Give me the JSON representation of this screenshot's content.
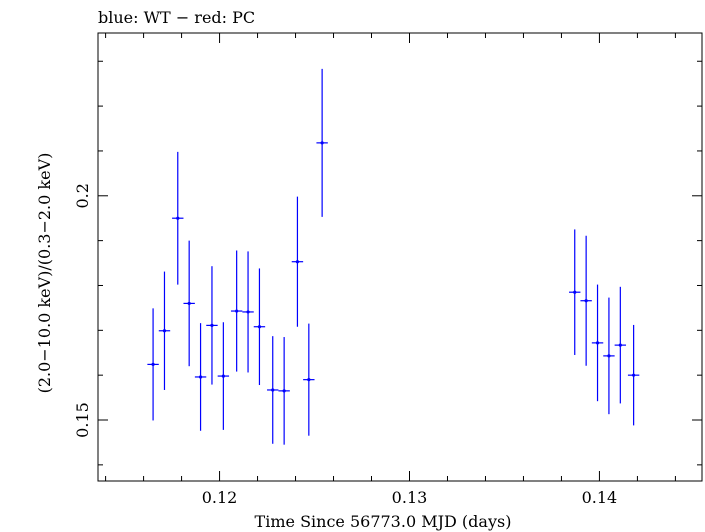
{
  "chart_data": {
    "type": "scatter",
    "title": "blue: WT − red: PC",
    "xlabel": "Time Since 56773.0 MJD (days)",
    "ylabel": "(2.0−10.0 keV)/(0.3−2.0 keV)",
    "xlim": [
      0.1136,
      0.1454
    ],
    "ylim": [
      0.1364,
      0.2363
    ],
    "xticks": [
      0.12,
      0.13,
      0.14
    ],
    "xtick_labels": [
      "0.12",
      "0.13",
      "0.14"
    ],
    "yticks": [
      0.15,
      0.2
    ],
    "ytick_labels": [
      "0.15",
      "0.2"
    ],
    "grid": false,
    "colors": {
      "WT": "#0000ff",
      "axis": "#000000"
    },
    "series": [
      {
        "name": "WT",
        "points": [
          {
            "x": 0.1165,
            "xerr": 0.0003,
            "y": 0.1624,
            "yerr": 0.0125
          },
          {
            "x": 0.1171,
            "xerr": 0.0003,
            "y": 0.1699,
            "yerr": 0.0132
          },
          {
            "x": 0.1178,
            "xerr": 0.0003,
            "y": 0.195,
            "yerr": 0.0148
          },
          {
            "x": 0.1184,
            "xerr": 0.0003,
            "y": 0.176,
            "yerr": 0.014
          },
          {
            "x": 0.119,
            "xerr": 0.0003,
            "y": 0.1596,
            "yerr": 0.012
          },
          {
            "x": 0.1196,
            "xerr": 0.0003,
            "y": 0.1711,
            "yerr": 0.0132
          },
          {
            "x": 0.1202,
            "xerr": 0.0003,
            "y": 0.1598,
            "yerr": 0.012
          },
          {
            "x": 0.1209,
            "xerr": 0.0003,
            "y": 0.1743,
            "yerr": 0.0135
          },
          {
            "x": 0.1215,
            "xerr": 0.0003,
            "y": 0.1741,
            "yerr": 0.0135
          },
          {
            "x": 0.1221,
            "xerr": 0.0003,
            "y": 0.1708,
            "yerr": 0.013
          },
          {
            "x": 0.1228,
            "xerr": 0.0003,
            "y": 0.1567,
            "yerr": 0.012
          },
          {
            "x": 0.1234,
            "xerr": 0.0003,
            "y": 0.1565,
            "yerr": 0.012
          },
          {
            "x": 0.1241,
            "xerr": 0.0003,
            "y": 0.1853,
            "yerr": 0.0145
          },
          {
            "x": 0.1247,
            "xerr": 0.0003,
            "y": 0.159,
            "yerr": 0.0125
          },
          {
            "x": 0.1254,
            "xerr": 0.0003,
            "y": 0.2118,
            "yerr": 0.0165
          },
          {
            "x": 0.1387,
            "xerr": 0.0003,
            "y": 0.1785,
            "yerr": 0.014
          },
          {
            "x": 0.1393,
            "xerr": 0.0003,
            "y": 0.1766,
            "yerr": 0.0145
          },
          {
            "x": 0.1399,
            "xerr": 0.0003,
            "y": 0.1672,
            "yerr": 0.013
          },
          {
            "x": 0.1405,
            "xerr": 0.0003,
            "y": 0.1643,
            "yerr": 0.013
          },
          {
            "x": 0.1411,
            "xerr": 0.0003,
            "y": 0.1667,
            "yerr": 0.013
          },
          {
            "x": 0.1418,
            "xerr": 0.0003,
            "y": 0.16,
            "yerr": 0.0112
          }
        ]
      }
    ]
  }
}
